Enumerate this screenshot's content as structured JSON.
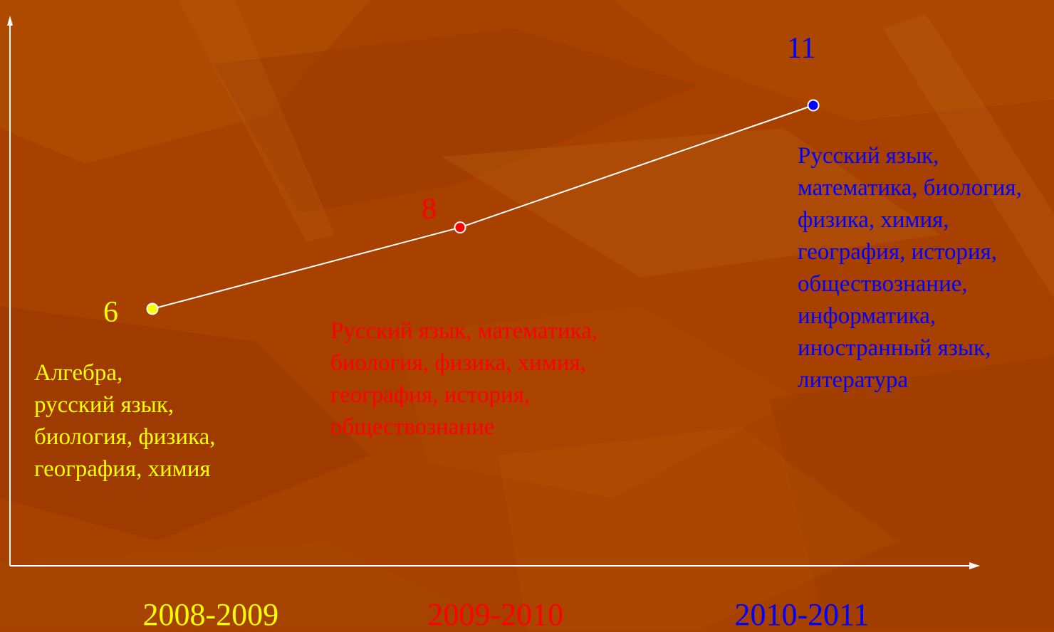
{
  "chart_data": {
    "type": "line",
    "categories": [
      "2008-2009",
      "2009-2010",
      "2010-2011"
    ],
    "values": [
      6,
      8,
      11
    ],
    "point_colors": [
      "#ffff00",
      "#ff0000",
      "#0000ff"
    ],
    "subjects": [
      [
        "Алгебра,",
        "русский язык,",
        "биология, физика,",
        "география, химия"
      ],
      [
        "Русский язык, математика,",
        "биология, физика, химия,",
        "география, история,",
        "обществознание"
      ],
      [
        "Русский язык,",
        "математика, биология,",
        "физика, химия,",
        "география, история,",
        "обществознание,",
        "информатика,",
        "иностранный язык,",
        "литература"
      ]
    ],
    "line_color": "#ffffff",
    "axis_color": "#ffffff",
    "background_color": "#a84000"
  }
}
